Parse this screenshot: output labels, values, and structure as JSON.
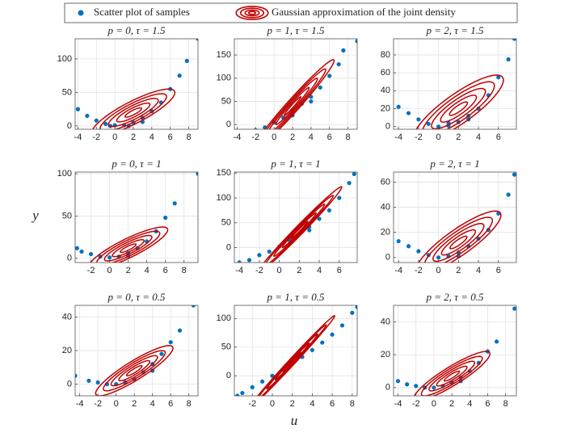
{
  "legend": [
    {
      "name": "Scatter plot of samples",
      "color": "#0072bd"
    },
    {
      "name": "Gaussian approximation of the joint density",
      "color": "#c00000"
    }
  ],
  "xlabel": "u",
  "ylabel": "y",
  "levels": [
    0.5,
    1,
    1.5,
    2,
    2.5
  ],
  "chart_data": [
    {
      "type": "scatter",
      "title": "p = 0, τ = 1.5",
      "xlim": [
        -4.3,
        9
      ],
      "xticks": [
        -4,
        -2,
        0,
        2,
        4,
        6,
        8
      ],
      "ylim": [
        -5,
        130
      ],
      "yticks": [
        0,
        50,
        100
      ],
      "grid": true,
      "points": {
        "x": [
          -4,
          -3,
          -2,
          -1,
          0,
          1,
          2,
          3,
          4,
          5,
          6,
          7,
          7.8,
          9,
          1.5,
          3,
          -0.5
        ],
        "y": [
          25,
          15,
          8,
          3,
          1,
          1,
          5,
          12,
          22,
          35,
          55,
          75,
          97,
          130,
          0,
          6,
          0
        ]
      },
      "gaussian": {
        "mean_x": 2,
        "mean_y": 20,
        "sd_x": 1.8,
        "sd_y": 14,
        "corr": 0.85
      }
    },
    {
      "type": "scatter",
      "title": "p = 1, τ = 1.5",
      "xlim": [
        -4.3,
        9
      ],
      "xticks": [
        -4,
        -2,
        0,
        2,
        4,
        6,
        8
      ],
      "ylim": [
        -10,
        185
      ],
      "yticks": [
        0,
        50,
        100,
        150
      ],
      "grid": true,
      "points": {
        "x": [
          -4,
          -3,
          -2,
          -1,
          0,
          1,
          2,
          3,
          4,
          5,
          6,
          7,
          7.5,
          9,
          2,
          4
        ],
        "y": [
          -18,
          -15,
          -12,
          -6,
          5,
          15,
          30,
          45,
          60,
          80,
          105,
          130,
          160,
          180,
          20,
          50
        ]
      },
      "gaussian": {
        "mean_x": 2,
        "mean_y": 40,
        "sd_x": 1.8,
        "sd_y": 40,
        "corr": 0.98
      }
    },
    {
      "type": "scatter",
      "title": "p = 2, τ = 1.5",
      "xlim": [
        -4.5,
        7.8
      ],
      "xticks": [
        -4,
        -2,
        0,
        2,
        4,
        6
      ],
      "ylim": [
        -3,
        98
      ],
      "yticks": [
        0,
        20,
        40,
        60,
        80
      ],
      "grid": true,
      "points": {
        "x": [
          -4,
          -3,
          -2,
          -1,
          0,
          1,
          2,
          3,
          4,
          5,
          6,
          7,
          7.6,
          1,
          3
        ],
        "y": [
          22,
          15,
          8,
          3,
          0,
          1,
          5,
          12,
          20,
          35,
          55,
          75,
          98,
          4,
          8
        ]
      },
      "gaussian": {
        "mean_x": 2,
        "mean_y": 20,
        "sd_x": 1.8,
        "sd_y": 15,
        "corr": 0.85
      }
    },
    {
      "type": "scatter",
      "title": "p = 0, τ = 1",
      "xlim": [
        -3.7,
        9.5
      ],
      "xticks": [
        -2,
        0,
        2,
        4,
        6,
        8
      ],
      "ylim": [
        -5,
        102
      ],
      "yticks": [
        0,
        50,
        100
      ],
      "grid": true,
      "points": {
        "x": [
          -3.5,
          -3,
          -2,
          -1,
          0,
          1,
          2,
          3,
          4,
          5,
          6,
          7,
          9.5,
          2
        ],
        "y": [
          12,
          8,
          5,
          2,
          1,
          2,
          6,
          12,
          20,
          32,
          48,
          65,
          100,
          3
        ]
      },
      "gaussian": {
        "mean_x": 2,
        "mean_y": 12,
        "sd_x": 1.7,
        "sd_y": 10,
        "corr": 0.87
      }
    },
    {
      "type": "scatter",
      "title": "p = 1, τ = 1",
      "xlim": [
        -4.5,
        7.8
      ],
      "xticks": [
        -4,
        -2,
        0,
        2,
        4,
        6
      ],
      "ylim": [
        -30,
        152
      ],
      "yticks": [
        0,
        50,
        100,
        150
      ],
      "grid": true,
      "points": {
        "x": [
          -4,
          -3,
          -2,
          -1,
          0,
          1,
          2,
          3,
          4,
          5,
          6,
          7,
          7.5,
          3
        ],
        "y": [
          -30,
          -25,
          -15,
          -8,
          2,
          15,
          28,
          42,
          58,
          75,
          100,
          130,
          148,
          35
        ]
      },
      "gaussian": {
        "mean_x": 2,
        "mean_y": 35,
        "sd_x": 1.7,
        "sd_y": 35,
        "corr": 0.99
      }
    },
    {
      "type": "scatter",
      "title": "p = 2, τ = 1",
      "xlim": [
        -4.5,
        7.8
      ],
      "xticks": [
        -4,
        -2,
        0,
        2,
        4,
        6
      ],
      "ylim": [
        -4,
        68
      ],
      "yticks": [
        0,
        20,
        40,
        60
      ],
      "grid": true,
      "points": {
        "x": [
          -4,
          -3,
          -2,
          -1,
          0,
          1,
          2,
          3,
          4,
          5,
          6,
          7,
          7.6,
          2
        ],
        "y": [
          13,
          9,
          5,
          2,
          0,
          1,
          4,
          9,
          15,
          22,
          35,
          50,
          66,
          1
        ]
      },
      "gaussian": {
        "mean_x": 2,
        "mean_y": 12,
        "sd_x": 1.7,
        "sd_y": 10,
        "corr": 0.87
      }
    },
    {
      "type": "scatter",
      "title": "p = 0, τ = 0.5",
      "xlim": [
        -4.5,
        9
      ],
      "xticks": [
        -4,
        -2,
        0,
        2,
        4,
        6,
        8
      ],
      "ylim": [
        -7,
        47
      ],
      "yticks": [
        0,
        20,
        40
      ],
      "grid": true,
      "points": {
        "x": [
          -4.5,
          -3,
          -2,
          -1,
          0,
          1,
          2,
          3,
          4,
          5,
          6,
          7,
          8.5,
          4
        ],
        "y": [
          5,
          2,
          1,
          0,
          0,
          1,
          3,
          7,
          12,
          18,
          25,
          32,
          47,
          8
        ]
      },
      "gaussian": {
        "mean_x": 2,
        "mean_y": 8,
        "sd_x": 1.7,
        "sd_y": 6,
        "corr": 0.9
      }
    },
    {
      "type": "scatter",
      "title": "p = 1, τ = 0.5",
      "xlim": [
        -3.8,
        8.5
      ],
      "xticks": [
        -2,
        0,
        2,
        4,
        6,
        8
      ],
      "ylim": [
        -35,
        123
      ],
      "yticks": [
        0,
        50,
        100
      ],
      "grid": true,
      "points": {
        "x": [
          -3.5,
          -3,
          -2,
          -1,
          0,
          1,
          2,
          3,
          4,
          5,
          6,
          7,
          8,
          8.5
        ],
        "y": [
          -35,
          -30,
          -20,
          -10,
          0,
          10,
          22,
          33,
          45,
          58,
          72,
          88,
          110,
          120
        ]
      },
      "gaussian": {
        "mean_x": 2,
        "mean_y": 25,
        "sd_x": 1.7,
        "sd_y": 32,
        "corr": 0.995
      }
    },
    {
      "type": "scatter",
      "title": "p = 2, τ = 0.5",
      "xlim": [
        -4.5,
        9.2
      ],
      "xticks": [
        -4,
        -2,
        0,
        2,
        4,
        6,
        8
      ],
      "ylim": [
        -5,
        50
      ],
      "yticks": [
        0,
        20,
        40
      ],
      "grid": true,
      "points": {
        "x": [
          -4,
          -3,
          -2,
          -1,
          0,
          1,
          2,
          3,
          4,
          5,
          6,
          7,
          9,
          3
        ],
        "y": [
          4,
          2,
          1,
          0,
          0,
          1,
          3,
          6,
          10,
          15,
          22,
          28,
          48,
          4
        ]
      },
      "gaussian": {
        "mean_x": 2,
        "mean_y": 7,
        "sd_x": 1.7,
        "sd_y": 6,
        "corr": 0.9
      }
    }
  ]
}
